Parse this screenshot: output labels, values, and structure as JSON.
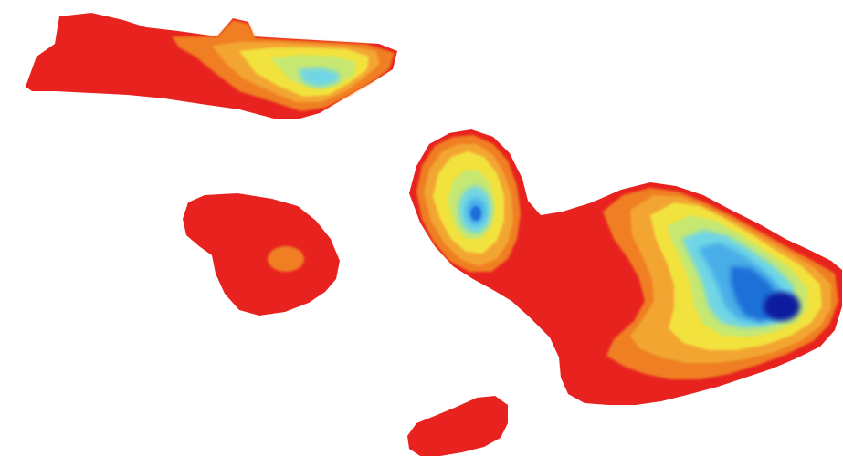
{
  "map": {
    "background": "#ffffff",
    "palette": {
      "lowland": "#e8231f",
      "band_orange": "#ef7f22",
      "band_light_orange": "#f3a531",
      "band_yellow": "#f2e23c",
      "band_yellow_green": "#c7e870",
      "band_cyan": "#6fd6e6",
      "band_light_blue": "#49aee8",
      "band_blue": "#1f6fd8",
      "peak_navy": "#0b1f9e"
    },
    "islands": [
      {
        "id": "northwest-island"
      },
      {
        "id": "west-island"
      },
      {
        "id": "central-island"
      },
      {
        "id": "south-island"
      }
    ]
  }
}
